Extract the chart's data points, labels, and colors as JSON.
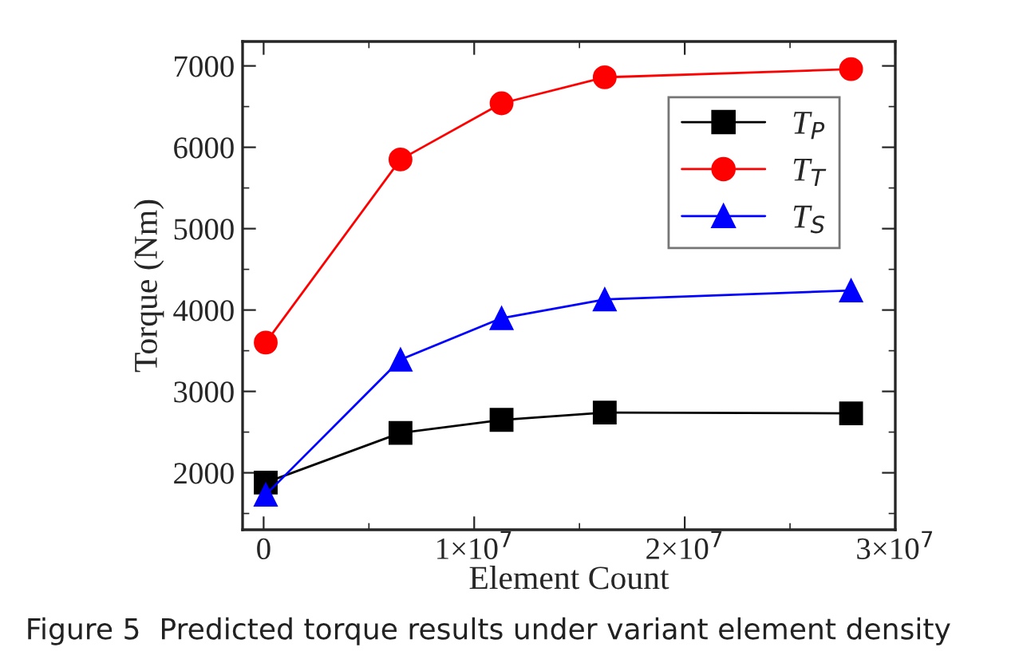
{
  "chart_data": {
    "type": "line",
    "xlabel": "Element Count",
    "ylabel": "Torque (Nm)",
    "x": [
      100000,
      6500000,
      11300000,
      16200000,
      27900000
    ],
    "series": [
      {
        "name": "T$_{P}$",
        "color": "#000000",
        "marker": "square",
        "values": [
          1880,
          2490,
          2650,
          2740,
          2730
        ]
      },
      {
        "name": "T$_{T}$",
        "color": "#ff0000",
        "marker": "circle",
        "values": [
          3600,
          5850,
          6540,
          6860,
          6960
        ]
      },
      {
        "name": "T$_{S}$",
        "color": "#0000ff",
        "marker": "triangle",
        "values": [
          1730,
          3390,
          3900,
          4130,
          4240
        ]
      }
    ],
    "xlim": [
      -1000000,
      30000000
    ],
    "xticks": [
      0,
      {
        "value": 10000000,
        "label": "1×10$^{7}$"
      },
      {
        "value": 20000000,
        "label": "2×10$^{7}$"
      },
      {
        "value": 30000000,
        "label": "3×10$^{7}$"
      }
    ],
    "ylim": [
      1300,
      7300
    ],
    "yticks": [
      2000,
      3000,
      4000,
      5000,
      6000,
      7000
    ],
    "grid": false,
    "legend": "top right",
    "line_style": "solid",
    "annotations": [
      "Figure 5  Predicted torque results under variant element density"
    ]
  }
}
